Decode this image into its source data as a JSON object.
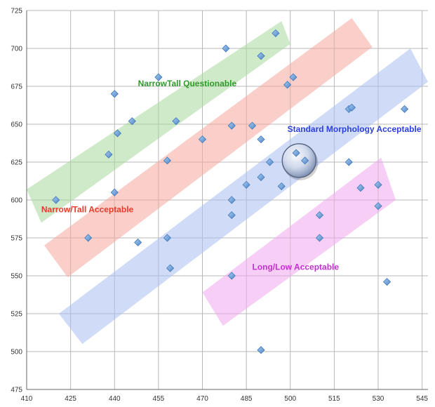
{
  "chart_data": {
    "type": "scatter",
    "title": "",
    "xlabel": "",
    "ylabel": "",
    "xlim": [
      410,
      547
    ],
    "ylim": [
      475,
      725
    ],
    "xticks": [
      410,
      425,
      440,
      455,
      470,
      485,
      500,
      515,
      530,
      545
    ],
    "yticks": [
      475,
      500,
      525,
      550,
      575,
      600,
      625,
      650,
      675,
      700,
      725
    ],
    "grid": true,
    "point_color": "#6a9fd6",
    "points": [
      {
        "x": 420,
        "y": 600
      },
      {
        "x": 431,
        "y": 575
      },
      {
        "x": 440,
        "y": 605
      },
      {
        "x": 438,
        "y": 630
      },
      {
        "x": 441,
        "y": 644
      },
      {
        "x": 440,
        "y": 670
      },
      {
        "x": 446,
        "y": 652
      },
      {
        "x": 448,
        "y": 572
      },
      {
        "x": 455,
        "y": 681
      },
      {
        "x": 458,
        "y": 626
      },
      {
        "x": 458,
        "y": 575
      },
      {
        "x": 459,
        "y": 555
      },
      {
        "x": 461,
        "y": 652
      },
      {
        "x": 470,
        "y": 640
      },
      {
        "x": 478,
        "y": 700
      },
      {
        "x": 480,
        "y": 649
      },
      {
        "x": 480,
        "y": 600
      },
      {
        "x": 480,
        "y": 590
      },
      {
        "x": 480,
        "y": 550
      },
      {
        "x": 485,
        "y": 610
      },
      {
        "x": 487,
        "y": 649
      },
      {
        "x": 490,
        "y": 695
      },
      {
        "x": 490,
        "y": 640
      },
      {
        "x": 490,
        "y": 615
      },
      {
        "x": 490,
        "y": 501
      },
      {
        "x": 493,
        "y": 625
      },
      {
        "x": 495,
        "y": 710
      },
      {
        "x": 497,
        "y": 609
      },
      {
        "x": 499,
        "y": 676
      },
      {
        "x": 501,
        "y": 681
      },
      {
        "x": 502,
        "y": 631
      },
      {
        "x": 505,
        "y": 626
      },
      {
        "x": 510,
        "y": 590
      },
      {
        "x": 510,
        "y": 575
      },
      {
        "x": 520,
        "y": 660
      },
      {
        "x": 521,
        "y": 661
      },
      {
        "x": 520,
        "y": 625
      },
      {
        "x": 524,
        "y": 608
      },
      {
        "x": 530,
        "y": 610
      },
      {
        "x": 530,
        "y": 596
      },
      {
        "x": 533,
        "y": 546
      },
      {
        "x": 539,
        "y": 660
      }
    ],
    "highlight": {
      "x": 503,
      "y": 626
    },
    "bands": [
      {
        "name": "NarrowTall Questionable",
        "color": "#a8d99b",
        "label_color": "#2e9a2a",
        "polygon": [
          [
            410,
            607
          ],
          [
            415,
            585
          ],
          [
            500,
            703
          ],
          [
            497,
            718
          ]
        ],
        "label_at": {
          "x": 448,
          "y": 675
        }
      },
      {
        "name": "Narrow/Tall Acceptable",
        "color": "#f5a79e",
        "label_color": "#e83a2a",
        "polygon": [
          [
            416,
            570
          ],
          [
            424,
            549
          ],
          [
            528,
            701
          ],
          [
            521,
            720
          ]
        ],
        "label_at": {
          "x": 415,
          "y": 592
        }
      },
      {
        "name": "Standard Morphology Acceptable",
        "color": "#a9bff0",
        "label_color": "#2a3ee0",
        "polygon": [
          [
            421,
            525
          ],
          [
            429,
            505
          ],
          [
            547,
            678
          ],
          [
            541,
            700
          ]
        ],
        "label_at": {
          "x": 499,
          "y": 645
        }
      },
      {
        "name": "Long/Low Acceptable",
        "color": "#f1a8ef",
        "label_color": "#c42fd0",
        "polygon": [
          [
            470,
            539
          ],
          [
            477,
            517
          ],
          [
            536,
            600
          ],
          [
            531,
            628
          ]
        ],
        "label_at": {
          "x": 487,
          "y": 554
        }
      }
    ]
  }
}
